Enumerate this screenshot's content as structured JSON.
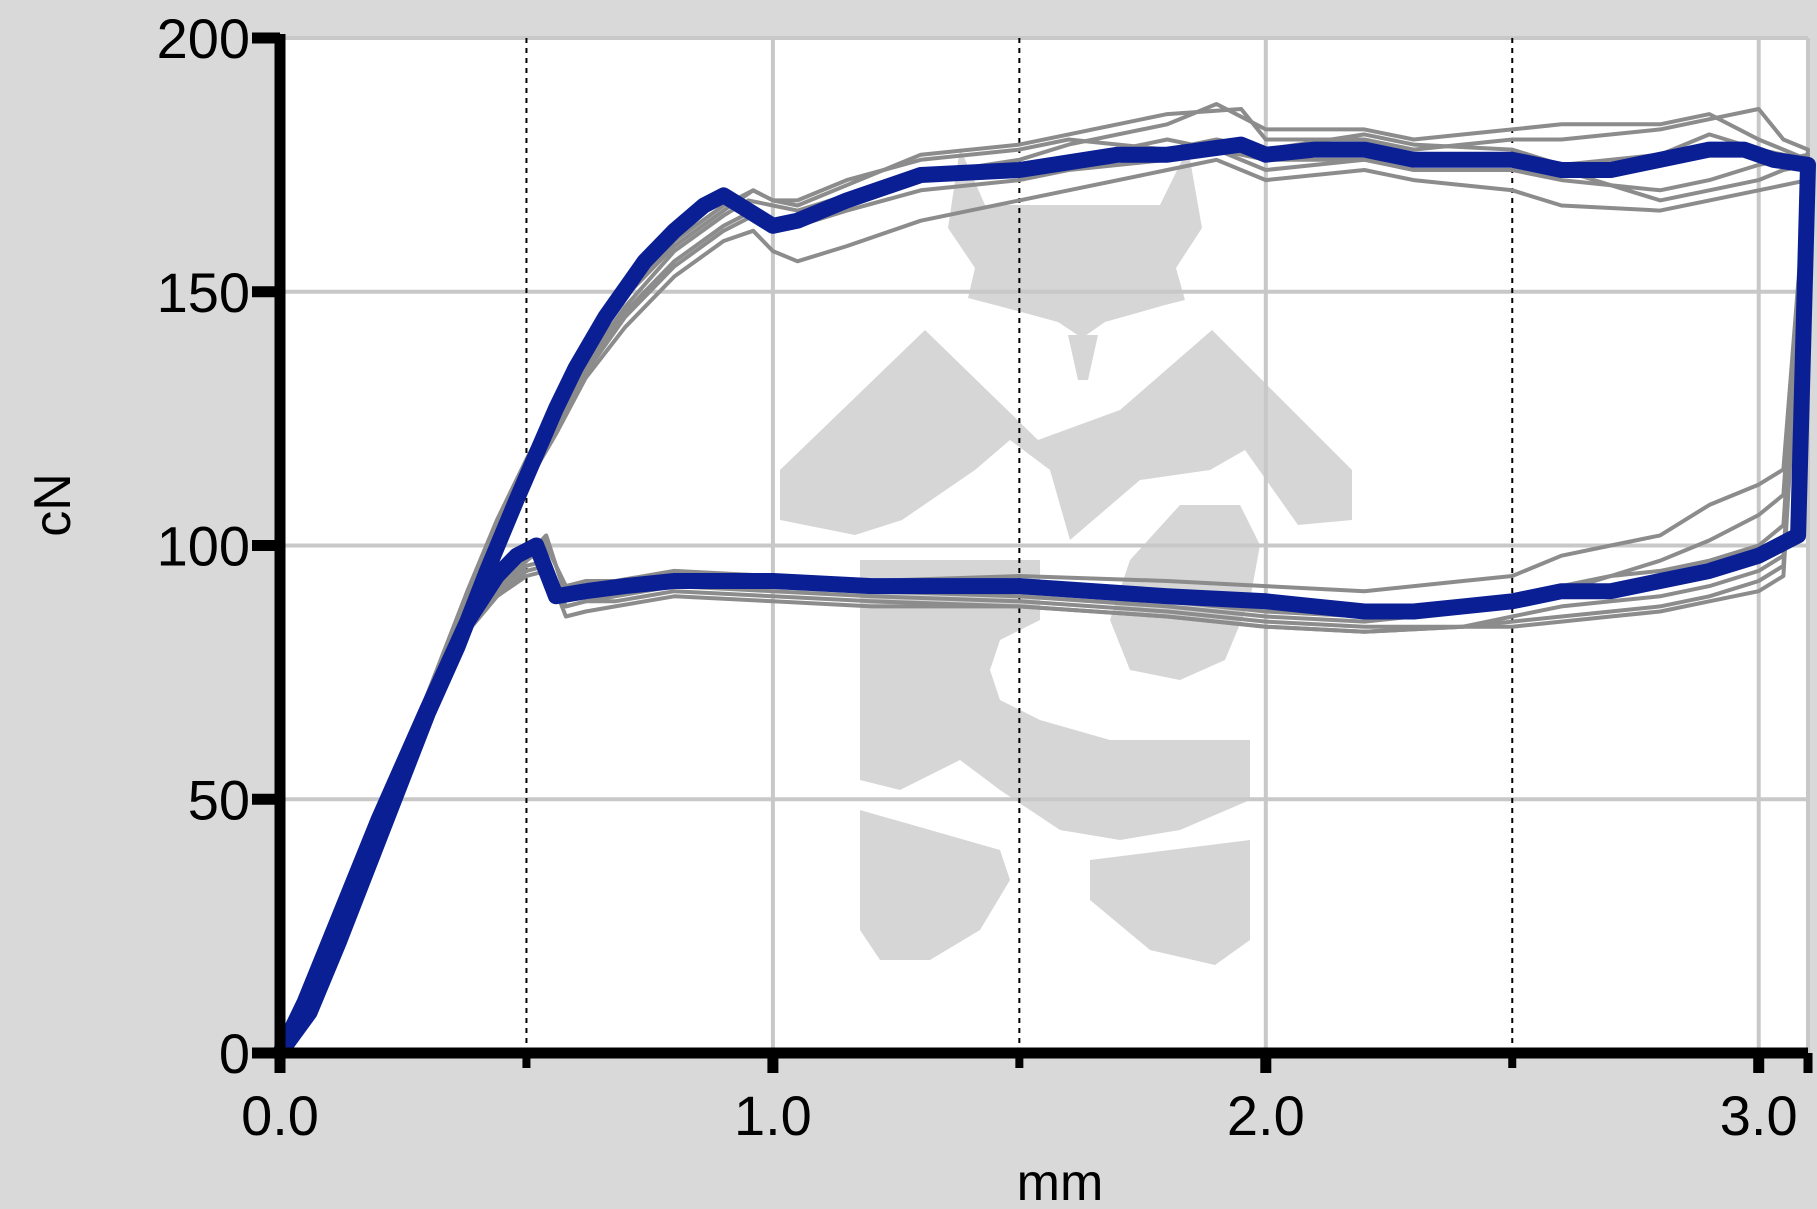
{
  "chart_data": {
    "type": "line",
    "title": "",
    "xlabel": "mm",
    "ylabel": "cN",
    "xlim": [
      0,
      3.1
    ],
    "ylim": [
      0,
      200
    ],
    "x_ticks": [
      0.0,
      1.0,
      2.0,
      3.0
    ],
    "x_tick_labels": [
      "0.0",
      "1.0",
      "2.0",
      "3.0"
    ],
    "y_ticks": [
      0,
      50,
      100,
      150,
      200
    ],
    "y_tick_labels": [
      "0",
      "50",
      "100",
      "150",
      "200"
    ],
    "x_minor_ticks": [
      0.5,
      1.5,
      2.5
    ],
    "grid": true,
    "legend": "none",
    "colors": {
      "background": "#d9d9d9",
      "plot_area": "#ffffff",
      "grid_major": "#c8c8c8",
      "grid_minor": "#000000",
      "axis": "#000000",
      "trial": "#8c8c8c",
      "mean": "#0a1f94"
    },
    "watermark": "gray emblem logo",
    "series": [
      {
        "role": "mean",
        "color": "#0a1f94",
        "x": [
          0,
          0.06,
          0.12,
          0.2,
          0.3,
          0.36,
          0.42,
          0.48,
          0.52,
          0.56,
          0.6,
          0.66,
          0.74,
          0.8,
          0.86,
          0.9,
          0.95,
          1.0,
          1.05,
          1.15,
          1.3,
          1.5,
          1.7,
          1.8,
          1.95,
          2.0,
          2.1,
          2.2,
          2.3,
          2.5,
          2.6,
          2.7,
          2.8,
          2.9,
          2.97,
          3.03,
          3.1,
          3.08,
          3.0,
          2.9,
          2.8,
          2.7,
          2.6,
          2.5,
          2.4,
          2.3,
          2.2,
          2.1,
          2.0,
          1.8,
          1.5,
          1.2,
          1.0,
          0.8,
          0.7,
          0.62,
          0.56,
          0.52,
          0.48,
          0.44,
          0.38,
          0.3,
          0.2,
          0.1,
          0.05,
          0
        ],
        "y": [
          0,
          8,
          22,
          42,
          67,
          80,
          95,
          109,
          118,
          127,
          135,
          145,
          156,
          162,
          167,
          169,
          166,
          163,
          164,
          168,
          173,
          174,
          177,
          177,
          179,
          177,
          178,
          178,
          176,
          176,
          174,
          174,
          176,
          178,
          178,
          176,
          175,
          102,
          98,
          95,
          93,
          91,
          91,
          89,
          88,
          87,
          87,
          88,
          89,
          90,
          92,
          92,
          93,
          93,
          92,
          91,
          90,
          100,
          98,
          94,
          85,
          68,
          46,
          22,
          10,
          0
        ]
      },
      {
        "role": "trial",
        "color": "#8c8c8c",
        "x": [
          0,
          0.1,
          0.2,
          0.3,
          0.38,
          0.44,
          0.5,
          0.55,
          0.62,
          0.7,
          0.8,
          0.9,
          0.95,
          1.0,
          1.05,
          1.15,
          1.3,
          1.5,
          1.6,
          1.8,
          1.9,
          2.0,
          2.2,
          2.3,
          2.5,
          2.6,
          2.8,
          2.9,
          3.0,
          3.05,
          3.1,
          3.05,
          3.0,
          2.9,
          2.8,
          2.7,
          2.6,
          2.5,
          2.4,
          2.2,
          2.0,
          1.8,
          1.5,
          1.2,
          1.0,
          0.8,
          0.68,
          0.62,
          0.58,
          0.54,
          0.5,
          0.44,
          0.38,
          0.3,
          0.2,
          0.1,
          0
        ],
        "y": [
          0,
          20,
          44,
          68,
          88,
          102,
          115,
          125,
          136,
          147,
          158,
          165,
          168,
          167,
          166,
          169,
          173,
          176,
          179,
          183,
          187,
          182,
          182,
          180,
          182,
          183,
          183,
          185,
          180,
          178,
          176,
          115,
          112,
          108,
          102,
          100,
          98,
          94,
          93,
          91,
          92,
          93,
          94,
          93,
          94,
          95,
          93,
          93,
          92,
          100,
          97,
          92,
          84,
          68,
          46,
          22,
          0
        ]
      },
      {
        "role": "trial",
        "color": "#8c8c8c",
        "x": [
          0,
          0.1,
          0.2,
          0.3,
          0.38,
          0.44,
          0.5,
          0.56,
          0.62,
          0.7,
          0.8,
          0.9,
          0.96,
          1.0,
          1.05,
          1.15,
          1.3,
          1.5,
          1.6,
          1.8,
          1.95,
          2.0,
          2.2,
          2.3,
          2.5,
          2.6,
          2.8,
          2.9,
          3.0,
          3.05,
          3.1,
          3.05,
          3.0,
          2.9,
          2.8,
          2.7,
          2.6,
          2.5,
          2.4,
          2.2,
          2.0,
          1.8,
          1.5,
          1.2,
          1.0,
          0.8,
          0.68,
          0.62,
          0.58,
          0.54,
          0.5,
          0.44,
          0.38,
          0.3,
          0.2,
          0.1,
          0
        ],
        "y": [
          0,
          21,
          45,
          70,
          90,
          104,
          116,
          127,
          138,
          149,
          159,
          166,
          170,
          168,
          167,
          171,
          177,
          179,
          181,
          185,
          186,
          180,
          180,
          178,
          180,
          180,
          182,
          184,
          186,
          180,
          178,
          110,
          106,
          101,
          97,
          94,
          91,
          89,
          87,
          85,
          86,
          88,
          90,
          91,
          92,
          93,
          91,
          91,
          90,
          102,
          98,
          93,
          85,
          70,
          47,
          23,
          0
        ]
      },
      {
        "role": "trial",
        "color": "#8c8c8c",
        "x": [
          0,
          0.1,
          0.2,
          0.3,
          0.38,
          0.44,
          0.5,
          0.56,
          0.62,
          0.7,
          0.8,
          0.9,
          0.96,
          1.0,
          1.05,
          1.15,
          1.3,
          1.5,
          1.6,
          1.8,
          1.9,
          2.0,
          2.2,
          2.3,
          2.5,
          2.6,
          2.8,
          2.9,
          3.0,
          3.05,
          3.1,
          3.05,
          3.0,
          2.9,
          2.8,
          2.7,
          2.6,
          2.5,
          2.4,
          2.2,
          2.0,
          1.8,
          1.5,
          1.2,
          1.0,
          0.8,
          0.68,
          0.62,
          0.58,
          0.54,
          0.5,
          0.44,
          0.38,
          0.3,
          0.2,
          0.1,
          0
        ],
        "y": [
          0,
          20,
          43,
          67,
          86,
          100,
          112,
          122,
          133,
          143,
          153,
          160,
          162,
          158,
          156,
          159,
          164,
          168,
          170,
          174,
          176,
          172,
          174,
          172,
          170,
          167,
          166,
          168,
          170,
          171,
          172,
          98,
          95,
          92,
          90,
          89,
          88,
          86,
          84,
          83,
          84,
          86,
          88,
          88,
          89,
          90,
          88,
          87,
          86,
          96,
          95,
          90,
          83,
          68,
          46,
          22,
          0
        ]
      },
      {
        "role": "trial",
        "color": "#8c8c8c",
        "x": [
          0,
          0.1,
          0.2,
          0.3,
          0.38,
          0.44,
          0.5,
          0.56,
          0.62,
          0.7,
          0.8,
          0.9,
          0.96,
          1.0,
          1.05,
          1.15,
          1.3,
          1.5,
          1.6,
          1.8,
          1.9,
          2.0,
          2.2,
          2.3,
          2.5,
          2.6,
          2.8,
          2.9,
          3.0,
          3.05,
          3.1,
          3.05,
          3.0,
          2.9,
          2.8,
          2.7,
          2.6,
          2.5,
          2.4,
          2.2,
          2.0,
          1.8,
          1.5,
          1.2,
          1.0,
          0.8,
          0.68,
          0.62,
          0.58,
          0.54,
          0.5,
          0.44,
          0.38,
          0.3,
          0.2,
          0.1,
          0
        ],
        "y": [
          0,
          21,
          44,
          69,
          88,
          102,
          114,
          124,
          135,
          146,
          156,
          163,
          166,
          164,
          163,
          166,
          170,
          172,
          174,
          176,
          178,
          176,
          176,
          174,
          174,
          172,
          170,
          172,
          175,
          176,
          177,
          96,
          93,
          90,
          88,
          87,
          86,
          85,
          84,
          84,
          85,
          87,
          89,
          90,
          91,
          92,
          90,
          89,
          88,
          97,
          96,
          91,
          84,
          69,
          47,
          23,
          0
        ]
      },
      {
        "role": "trial",
        "color": "#8c8c8c",
        "x": [
          0,
          0.1,
          0.2,
          0.3,
          0.38,
          0.44,
          0.5,
          0.56,
          0.62,
          0.7,
          0.8,
          0.9,
          0.96,
          1.0,
          1.05,
          1.15,
          1.3,
          1.5,
          1.6,
          1.8,
          1.9,
          2.0,
          2.2,
          2.3,
          2.5,
          2.6,
          2.8,
          2.9,
          3.0,
          3.05,
          3.1,
          3.05,
          3.0,
          2.9,
          2.8,
          2.7,
          2.6,
          2.5,
          2.4,
          2.2,
          2.0,
          1.8,
          1.5,
          1.2,
          1.0,
          0.8,
          0.68,
          0.62,
          0.58,
          0.54,
          0.5,
          0.44,
          0.38,
          0.3,
          0.2,
          0.1,
          0
        ],
        "y": [
          0,
          22,
          46,
          71,
          91,
          105,
          117,
          128,
          139,
          150,
          160,
          167,
          170,
          168,
          168,
          172,
          176,
          178,
          180,
          178,
          180,
          178,
          181,
          179,
          178,
          175,
          177,
          181,
          178,
          177,
          176,
          104,
          100,
          97,
          95,
          94,
          92,
          90,
          88,
          86,
          87,
          89,
          91,
          92,
          93,
          94,
          92,
          92,
          91,
          101,
          97,
          92,
          84,
          69,
          46,
          22,
          0
        ]
      },
      {
        "role": "trial",
        "color": "#8c8c8c",
        "x": [
          0,
          0.1,
          0.2,
          0.3,
          0.38,
          0.44,
          0.5,
          0.56,
          0.62,
          0.7,
          0.8,
          0.9,
          0.96,
          1.0,
          1.05,
          1.15,
          1.3,
          1.5,
          1.6,
          1.8,
          1.9,
          2.0,
          2.2,
          2.3,
          2.5,
          2.6,
          2.8,
          2.9,
          3.0,
          3.05,
          3.1,
          3.05,
          3.0,
          2.9,
          2.8,
          2.7,
          2.6,
          2.5,
          2.4,
          2.2,
          2.0,
          1.8,
          1.5,
          1.2,
          1.0,
          0.8,
          0.68,
          0.62,
          0.58,
          0.54,
          0.5,
          0.44,
          0.38,
          0.3,
          0.2,
          0.1,
          0
        ],
        "y": [
          0,
          20,
          44,
          68,
          87,
          101,
          113,
          123,
          134,
          145,
          155,
          162,
          165,
          164,
          165,
          168,
          172,
          175,
          176,
          180,
          178,
          174,
          176,
          176,
          176,
          174,
          168,
          170,
          172,
          174,
          175,
          94,
          91,
          89,
          87,
          86,
          85,
          84,
          84,
          83,
          84,
          86,
          88,
          89,
          90,
          91,
          89,
          89,
          88,
          95,
          94,
          90,
          83,
          68,
          46,
          22,
          0
        ]
      }
    ]
  }
}
